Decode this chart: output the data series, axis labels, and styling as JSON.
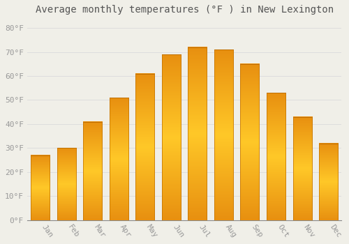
{
  "title": "Average monthly temperatures (°F ) in New Lexington",
  "months": [
    "Jan",
    "Feb",
    "Mar",
    "Apr",
    "May",
    "Jun",
    "Jul",
    "Aug",
    "Sep",
    "Oct",
    "Nov",
    "Dec"
  ],
  "values": [
    27,
    30,
    41,
    51,
    61,
    69,
    72,
    71,
    65,
    53,
    43,
    32
  ],
  "bar_color_center": "#FFC020",
  "bar_color_edge": "#E8900A",
  "background_color": "#F0EFE8",
  "grid_color": "#DDDDDD",
  "ylim": [
    0,
    84
  ],
  "yticks": [
    0,
    10,
    20,
    30,
    40,
    50,
    60,
    70,
    80
  ],
  "ytick_labels": [
    "0°F",
    "10°F",
    "20°F",
    "30°F",
    "40°F",
    "50°F",
    "60°F",
    "70°F",
    "80°F"
  ],
  "title_fontsize": 10,
  "tick_fontsize": 8,
  "font_family": "monospace",
  "bar_width": 0.72
}
